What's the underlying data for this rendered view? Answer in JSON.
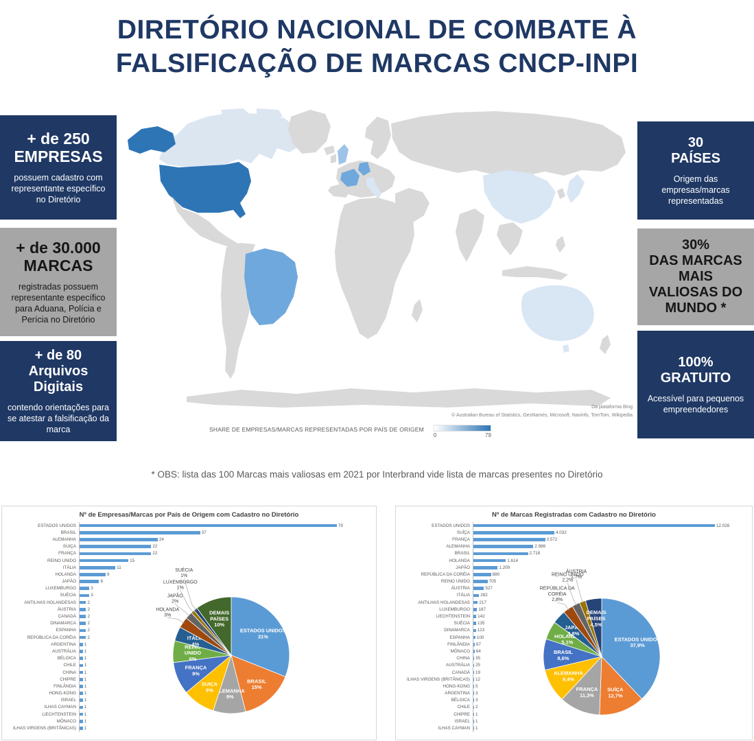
{
  "title": {
    "line1": "DIRETÓRIO NACIONAL DE COMBATE À",
    "line2": "FALSIFICAÇÃO DE MARCAS CNCP-INPI"
  },
  "left_boxes": [
    {
      "headline": "+ de 250",
      "title": "EMPRESAS",
      "body": "possuem cadastro com representante específico no Diretório"
    },
    {
      "headline": "+ de 30.000",
      "title": "MARCAS",
      "body": "registradas possuem representante específico para Aduana, Polícia e Perícia no Diretório"
    },
    {
      "headline": "+ de 80",
      "title": "Arquivos Digitais",
      "body": "contendo orientações para se atestar a falsificação da marca"
    }
  ],
  "right_boxes": [
    {
      "headline": "30",
      "title": "PAÍSES",
      "body": "Origem das empresas/marcas representadas"
    },
    {
      "headline": "30%",
      "title": "DAS MARCAS MAIS VALIOSAS DO MUNDO *",
      "body": ""
    },
    {
      "headline": "100%",
      "title": "GRATUITO",
      "body": "Acessível para pequenos empreendedores"
    }
  ],
  "map": {
    "platform_credit": "Da plataforma Bing",
    "attribution": "© Australian Bureau of Statistics, GeoNames, Microsoft, Navinfo, TomTom, Wikipedia",
    "legend_title": "SHARE DE EMPRESAS/MARCAS REPRESENTADAS POR PAÍS DE ORIGEM",
    "legend_min": "0",
    "legend_max": "79"
  },
  "note": "* OBS: lista das 100 Marcas mais valiosas em 2021 por Interbrand vide lista de marcas presentes no Diretório",
  "colors": {
    "navy": "#1F3864",
    "gray_box": "#A6A6A6",
    "bar": "#5B9BD5",
    "map_high": "#2E75B6",
    "map_mid": "#6FA8DC",
    "map_pale": "#D9E6F4",
    "map_land": "#D9D9D9"
  },
  "chart_data": [
    {
      "type": "bar+pie",
      "title": "Nº de Empresas/Marcas por País de Origem com Cadastro no Diretório",
      "orientation": "horizontal",
      "bar_color": "#5B9BD5",
      "categories": [
        "ESTADOS UNIDOS",
        "BRASIL",
        "ALEMANHA",
        "SUIÇA",
        "FRANÇA",
        "REINO UNIDO",
        "ITÁLIA",
        "HOLANDA",
        "JAPÃO",
        "LUXEMBURGO",
        "SUÉCIA",
        "ANTILHAS HOLANDESAS",
        "ÁUSTRIA",
        "CANADÁ",
        "DINAMARCA",
        "ESPANHA",
        "REPÚBLICA DA CORÉIA",
        "ARGENTINA",
        "AUSTRÁLIA",
        "BÉLGICA",
        "CHILE",
        "CHINA",
        "CHIPRE",
        "FINLÂNDIA",
        "HONG-KONG",
        "ISRAEL",
        "ILHAS CAYMAN",
        "LIECHTENSTEIN",
        "MÔNACO",
        "ILHAS VIRGENS (BRITÂNICAS)"
      ],
      "values": [
        79,
        37,
        24,
        22,
        22,
        15,
        11,
        8,
        6,
        3,
        3,
        2,
        2,
        2,
        2,
        2,
        2,
        1,
        1,
        1,
        1,
        1,
        1,
        1,
        1,
        1,
        1,
        1,
        1,
        1
      ],
      "display_values": [
        "79",
        "37",
        "24",
        "22",
        "22",
        "15",
        "11",
        "8",
        "6",
        "3",
        "3",
        "2",
        "2",
        "2",
        "2",
        "2",
        "2",
        "1",
        "1",
        "1",
        "1",
        "1",
        "1",
        "1",
        "1",
        "1",
        "1",
        "1",
        "1",
        "1"
      ],
      "pie": {
        "labels": [
          "ESTADOS UNIDOS",
          "BRASIL",
          "ALEMANHA",
          "SUIÇA",
          "FRANÇA",
          "REINO UNIDO",
          "ITÁLIA",
          "HOLANDA",
          "JAPÃO",
          "LUXEMBURGO",
          "SUÉCIA",
          "DEMAIS PAÍSES"
        ],
        "values": [
          31,
          15,
          9,
          9,
          9,
          6,
          4,
          3,
          2,
          1,
          1,
          10
        ],
        "display": [
          "31%",
          "15%",
          "9%",
          "9%",
          "9%",
          "6%",
          "4%",
          "3%",
          "2%",
          "1%",
          "1%",
          "10%"
        ],
        "colors": [
          "#5B9BD5",
          "#ED7D31",
          "#A5A5A5",
          "#FFC000",
          "#4472C4",
          "#70AD47",
          "#255E91",
          "#9E480E",
          "#636363",
          "#997300",
          "#264478",
          "#43682B"
        ]
      }
    },
    {
      "type": "bar+pie",
      "title": "Nº de Marcas Registradas com Cadastro no Diretório",
      "orientation": "horizontal",
      "bar_color": "#5B9BD5",
      "categories": [
        "ESTADOS UNIDOS",
        "SUÍÇA",
        "FRANÇA",
        "ALEMANHA",
        "BRASIL",
        "HOLANDA",
        "JAPÃO",
        "REPÚBLICA DA CORÉIA",
        "REINO UNIDO",
        "ÁUSTRIA",
        "ITÁLIA",
        "ANTILHAS HOLANDESAS",
        "LUXEMBURGO",
        "LIECHTENSTEIN",
        "SUÉCIA",
        "DINAMARCA",
        "ESPANHA",
        "FINLÂNDIA",
        "MÔNACO",
        "CHINA",
        "AUSTRÁLIA",
        "CANADÁ",
        "ILHAS VIRGENS (BRITÂNICAS)",
        "HONG-KONG",
        "ARGENTINA",
        "BÉLGICA",
        "CHILE",
        "CHIPRE",
        "ISRAEL",
        "ILHAS CAYMAN"
      ],
      "values": [
        12026,
        4032,
        3572,
        2986,
        2718,
        1614,
        1209,
        880,
        705,
        527,
        282,
        217,
        187,
        142,
        135,
        123,
        100,
        67,
        64,
        35,
        25,
        19,
        12,
        5,
        3,
        3,
        2,
        1,
        1,
        1
      ],
      "display_values": [
        "12.026",
        "4.032",
        "3.572",
        "2.986",
        "2.718",
        "1.614",
        "1.209",
        "880",
        "705",
        "527",
        "282",
        "217",
        "187",
        "142",
        "135",
        "123",
        "100",
        "67",
        "64",
        "35",
        "25",
        "19",
        "12",
        "5",
        "3",
        "3",
        "2",
        "1",
        "1",
        "1"
      ],
      "pie": {
        "labels": [
          "ESTADOS UNIDOS",
          "SUÍÇA",
          "FRANÇA",
          "ALEMANHA",
          "BRASIL",
          "HOLANDA",
          "JAPÃO",
          "REPÚBLICA DA CORÉIA",
          "REINO UNIDO",
          "ÁUSTRIA",
          "DEMAIS PAÍSES"
        ],
        "values": [
          37.9,
          12.7,
          11.3,
          9.4,
          8.6,
          5.1,
          3.8,
          2.8,
          2.2,
          1.7,
          4.5
        ],
        "display": [
          "37,9%",
          "12,7%",
          "11,3%",
          "9,4%",
          "8,6%",
          "5,1%",
          "3,8%",
          "2,8%",
          "2,2%",
          "1,7%",
          "4,5%"
        ],
        "colors": [
          "#5B9BD5",
          "#ED7D31",
          "#A5A5A5",
          "#FFC000",
          "#4472C4",
          "#70AD47",
          "#255E91",
          "#9E480E",
          "#636363",
          "#997300",
          "#264478"
        ]
      }
    }
  ]
}
